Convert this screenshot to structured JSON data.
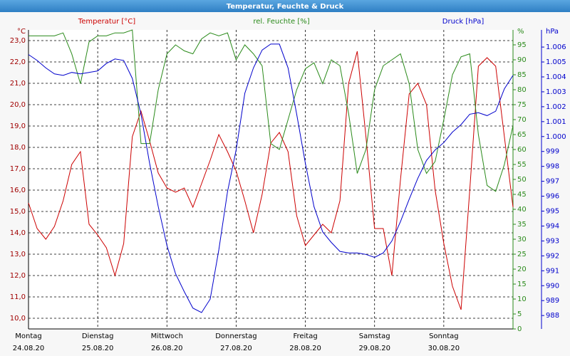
{
  "chart_data": {
    "type": "line",
    "title": "Temperatur, Feuchte & Druck",
    "x": [
      0,
      3,
      6,
      9,
      12,
      15,
      18,
      21,
      24,
      27,
      30,
      33,
      36,
      39,
      42,
      45,
      48,
      51,
      54,
      57,
      60,
      63,
      66,
      69,
      72,
      75,
      78,
      81,
      84,
      87,
      90,
      93,
      96,
      99,
      102,
      105,
      108,
      111,
      114,
      117,
      120,
      123,
      126,
      129,
      132,
      135,
      138,
      141,
      144,
      147,
      150,
      153,
      156,
      159,
      162,
      165,
      168
    ],
    "xlim": [
      0,
      168
    ],
    "xticks": [
      {
        "value": 0,
        "label": "Montag",
        "sublabel": "24.08.20"
      },
      {
        "value": 24,
        "label": "Dienstag",
        "sublabel": "25.08.20"
      },
      {
        "value": 48,
        "label": "Mittwoch",
        "sublabel": "26.08.20"
      },
      {
        "value": 72,
        "label": "Donnerstag",
        "sublabel": "27.08.20"
      },
      {
        "value": 96,
        "label": "Freitag",
        "sublabel": "28.08.20"
      },
      {
        "value": 120,
        "label": "Samstag",
        "sublabel": "29.08.20"
      },
      {
        "value": 144,
        "label": "Sonntag",
        "sublabel": "30.08.20"
      }
    ],
    "ylim": [
      9.5,
      23.5
    ],
    "y_unit": "°C",
    "yticks": [
      {
        "value": 10,
        "label": "10,0"
      },
      {
        "value": 11,
        "label": "11,0"
      },
      {
        "value": 12,
        "label": "12,0"
      },
      {
        "value": 13,
        "label": "13,0"
      },
      {
        "value": 14,
        "label": "14,0"
      },
      {
        "value": 15,
        "label": "15,0"
      },
      {
        "value": 16,
        "label": "16,0"
      },
      {
        "value": 17,
        "label": "17,0"
      },
      {
        "value": 18,
        "label": "18,0"
      },
      {
        "value": 19,
        "label": "19,0"
      },
      {
        "value": 20,
        "label": "20,0"
      },
      {
        "value": 21,
        "label": "21,0"
      },
      {
        "value": 22,
        "label": "22,0"
      },
      {
        "value": 23,
        "label": "23,0"
      }
    ],
    "y2lim": [
      0,
      100
    ],
    "y2_unit": "%",
    "y2ticks": [
      0,
      5,
      10,
      15,
      20,
      25,
      30,
      35,
      40,
      45,
      50,
      55,
      60,
      65,
      70,
      75,
      80,
      85,
      90,
      95
    ],
    "y3lim": [
      987.1,
      1007.15
    ],
    "y3_unit": "hPa",
    "y3ticks": [
      988,
      989,
      990,
      991,
      992,
      993,
      994,
      995,
      996,
      997,
      998,
      999,
      {
        "value": 1000,
        "label": "1.000"
      },
      {
        "value": 1001,
        "label": "1.001"
      },
      {
        "value": 1002,
        "label": "1.002"
      },
      {
        "value": 1003,
        "label": "1.003"
      },
      {
        "value": 1004,
        "label": "1.004"
      },
      {
        "value": 1005,
        "label": "1.005"
      },
      {
        "value": 1006,
        "label": "1.006"
      }
    ],
    "grid": true,
    "series": [
      {
        "name": "Temperatur [°C]",
        "color": "#cc0000",
        "axis": "y",
        "values": [
          15.4,
          14.2,
          13.7,
          14.3,
          15.5,
          17.2,
          17.8,
          14.4,
          13.9,
          13.3,
          12.0,
          13.5,
          18.5,
          19.7,
          18.3,
          16.8,
          16.1,
          15.9,
          16.1,
          15.2,
          16.3,
          17.4,
          18.6,
          17.8,
          16.9,
          15.5,
          14.0,
          15.8,
          18.2,
          18.7,
          17.8,
          14.8,
          13.4,
          13.9,
          14.4,
          14.0,
          15.5,
          21.0,
          22.5,
          18.5,
          14.2,
          14.2,
          12.0,
          16.5,
          20.5,
          21.0,
          20.0,
          16.0,
          13.5,
          11.5,
          10.4,
          16.0,
          21.8,
          22.2,
          21.8,
          18.5,
          15.2
        ]
      },
      {
        "name": "rel. Feuchte [%]",
        "color": "#2a8a1a",
        "axis": "y2",
        "values": [
          98,
          98,
          98,
          98,
          99,
          92,
          82,
          96,
          98,
          98,
          99,
          99,
          100,
          62,
          62,
          80,
          92,
          95,
          93,
          92,
          97,
          99,
          98,
          99,
          90,
          95,
          92,
          88,
          62,
          60,
          70,
          80,
          87,
          89,
          82,
          90,
          88,
          72,
          52,
          60,
          80,
          88,
          90,
          92,
          82,
          60,
          52,
          56,
          70,
          85,
          91,
          92,
          65,
          48,
          46,
          55,
          68
        ]
      },
      {
        "name": "Druck [hPa]",
        "color": "#0000cc",
        "axis": "y3",
        "values": [
          1005.5,
          1005.1,
          1004.6,
          1004.2,
          1004.1,
          1004.3,
          1004.2,
          1004.3,
          1004.4,
          1004.9,
          1005.2,
          1005.1,
          1003.9,
          1001.5,
          998.2,
          995.3,
          992.7,
          990.8,
          989.6,
          988.5,
          988.2,
          989.1,
          992.4,
          996.3,
          999.1,
          1002.9,
          1004.6,
          1005.8,
          1006.2,
          1006.2,
          1004.6,
          1001.5,
          998.2,
          995.3,
          993.6,
          992.9,
          992.3,
          992.2,
          992.2,
          992.1,
          991.9,
          992.2,
          993.0,
          994.3,
          995.8,
          997.2,
          998.4,
          999.1,
          999.6,
          1000.3,
          1000.8,
          1001.5,
          1001.6,
          1001.4,
          1001.7,
          1003.2,
          1004.1
        ]
      }
    ]
  }
}
